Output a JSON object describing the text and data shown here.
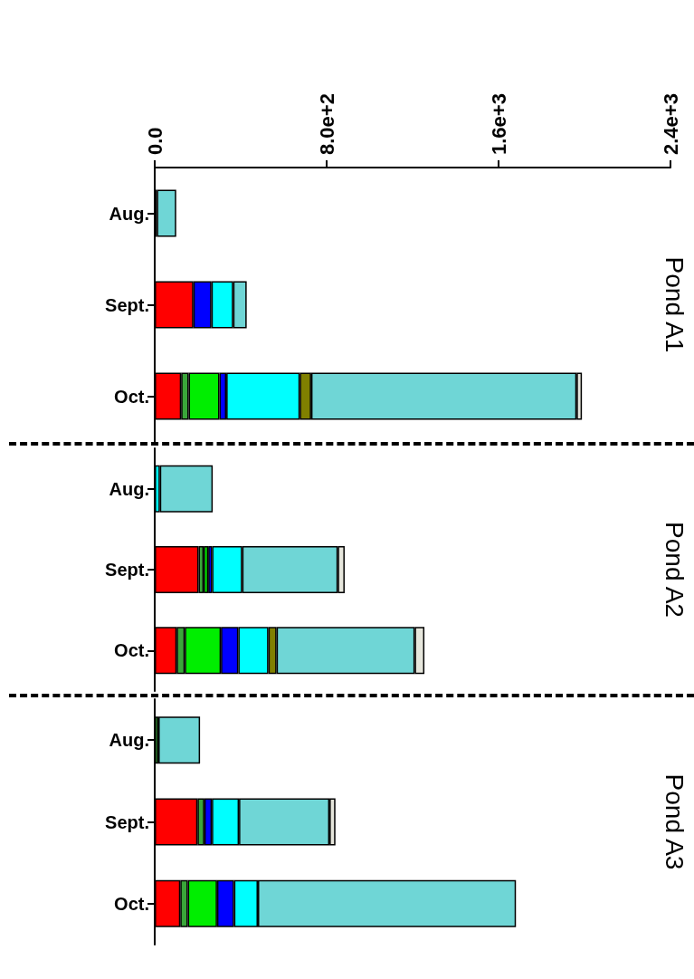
{
  "chart_data": [
    {
      "type": "bar",
      "title": "Pond A1",
      "orientation": "horizontal",
      "stacked": true,
      "categories": [
        "Aug.",
        "Sept.",
        "Oct."
      ],
      "xlim": [
        0,
        2400
      ],
      "xticks": [
        {
          "value": 0,
          "label": "0.0"
        },
        {
          "value": 800,
          "label": "8.0e+2"
        },
        {
          "value": 1600,
          "label": "1.6e+3"
        },
        {
          "value": 2400,
          "label": "2.4e+3"
        }
      ],
      "series": [
        {
          "color": "#ff0000",
          "values": [
            null,
            180,
            123
          ]
        },
        {
          "color": "#3aa63a",
          "values": [
            10,
            null,
            35
          ]
        },
        {
          "color": "#00ee00",
          "values": [
            null,
            null,
            143
          ]
        },
        {
          "color": "#0000ff",
          "values": [
            null,
            84,
            32
          ]
        },
        {
          "color": "#00ffff",
          "values": [
            null,
            101,
            342
          ]
        },
        {
          "color": "#808000",
          "values": [
            null,
            null,
            53
          ]
        },
        {
          "color": "#6fd6d6",
          "values": [
            90,
            63,
            1235
          ]
        },
        {
          "color": "#e6e6dc",
          "values": [
            null,
            null,
            25
          ]
        }
      ]
    },
    {
      "type": "bar",
      "title": "Pond A2",
      "orientation": "horizontal",
      "stacked": true,
      "categories": [
        "Aug.",
        "Sept.",
        "Oct."
      ],
      "xlim": [
        0,
        2400
      ],
      "tick_labels": "y",
      "series": [
        {
          "color": "#ff0000",
          "values": [
            null,
            204,
            102
          ]
        },
        {
          "color": "#3aa63a",
          "values": [
            null,
            24,
            38
          ]
        },
        {
          "color": "#00ee00",
          "values": [
            null,
            21,
            168
          ]
        },
        {
          "color": "#0000ff",
          "values": [
            null,
            18,
            81
          ]
        },
        {
          "color": "#00ffff",
          "values": [
            24,
            140,
            140
          ]
        },
        {
          "color": "#808000",
          "values": [
            null,
            null,
            38
          ]
        },
        {
          "color": "#6fd6d6",
          "values": [
            246,
            445,
            643
          ]
        },
        {
          "color": "#e6e6dc",
          "values": [
            null,
            32,
            45
          ]
        }
      ]
    },
    {
      "type": "bar",
      "title": "Pond A3",
      "orientation": "horizontal",
      "stacked": true,
      "categories": [
        "Aug.",
        "Sept.",
        "Oct."
      ],
      "xlim": [
        0,
        2400
      ],
      "tick_labels": "y",
      "series": [
        {
          "color": "#ff0000",
          "values": [
            null,
            199,
            119
          ]
        },
        {
          "color": "#3aa63a",
          "values": [
            17,
            32,
            35
          ]
        },
        {
          "color": "#00ee00",
          "values": [
            null,
            null,
            136
          ]
        },
        {
          "color": "#0000ff",
          "values": [
            null,
            35,
            79
          ]
        },
        {
          "color": "#00ffff",
          "values": [
            null,
            126,
            111
          ]
        },
        {
          "color": "#808000",
          "values": [
            null,
            null,
            null
          ]
        },
        {
          "color": "#6fd6d6",
          "values": [
            194,
            421,
            1201
          ]
        },
        {
          "color": "#e6e6dc",
          "values": [
            null,
            28,
            null
          ]
        }
      ]
    }
  ]
}
